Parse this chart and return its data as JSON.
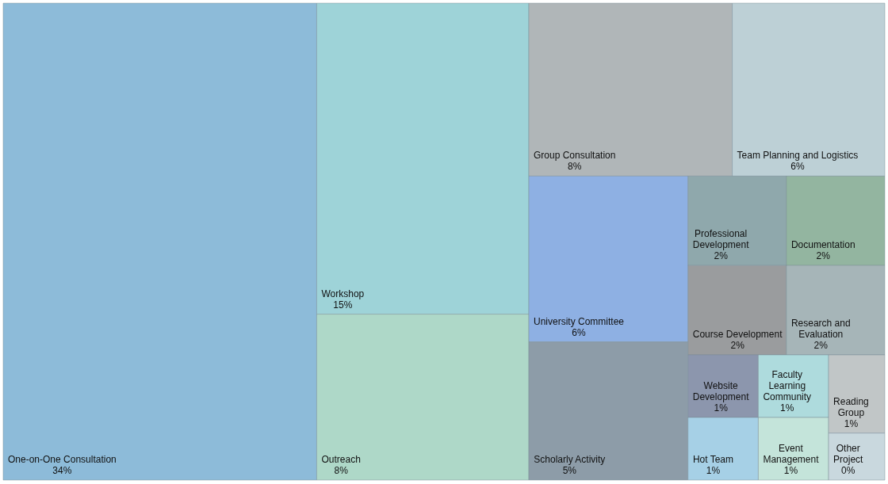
{
  "chart_data": {
    "type": "other",
    "categories": [
      "One-on-One Consultation",
      "Workshop",
      "Outreach",
      "Group Consultation",
      "Team Planning and Logistics",
      "University Committee",
      "Scholarly Activity",
      "Professional Development",
      "Documentation",
      "Course Development",
      "Research and Evaluation",
      "Website Development",
      "Hot Team",
      "Faculty Learning Community",
      "Event Management",
      "Reading Group",
      "Other Project"
    ],
    "values": [
      34,
      15,
      8,
      8,
      6,
      6,
      5,
      2,
      2,
      2,
      2,
      1,
      1,
      1,
      1,
      1,
      0
    ],
    "value_labels": [
      "34%",
      "15%",
      "8%",
      "8%",
      "6%",
      "6%",
      "5%",
      "2%",
      "2%",
      "2%",
      "2%",
      "1%",
      "1%",
      "1%",
      "1%",
      "1%",
      "0%"
    ],
    "colors": [
      "#8dbbd9",
      "#9ed3d8",
      "#aed8c8",
      "#b0b6b8",
      "#bdd0d6",
      "#8eb0e3",
      "#8d9ca8",
      "#8fa8ac",
      "#93b5a0",
      "#9a9c9e",
      "#a6b5b8",
      "#8c96ad",
      "#a6d0e6",
      "#aedbdd",
      "#c4e4da",
      "#c1c6c7",
      "#c9d8de"
    ]
  }
}
